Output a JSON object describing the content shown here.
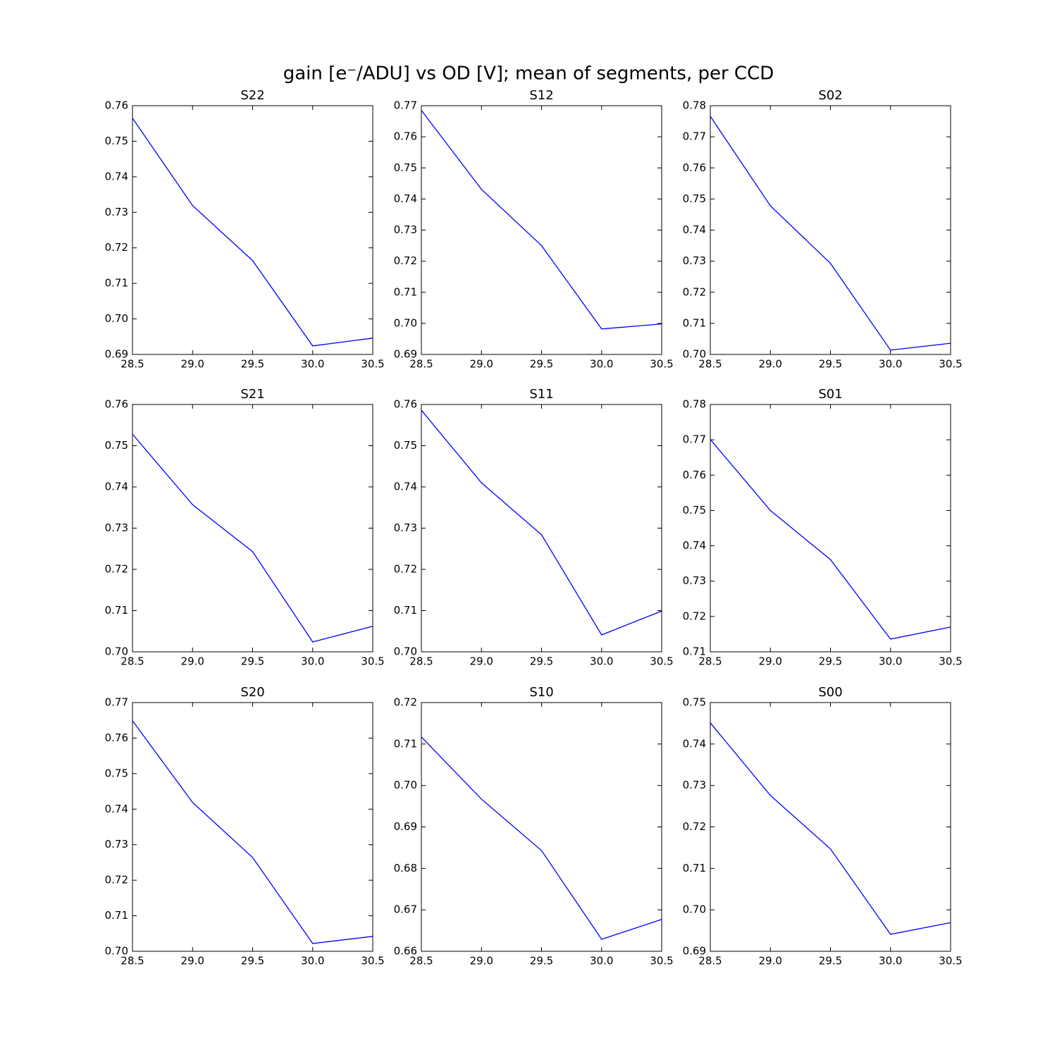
{
  "title": "gain [e⁻/ADU] vs OD [V]; mean of segments, per CCD",
  "chart_data": [
    {
      "type": "line",
      "title": "S22",
      "x": [
        28.5,
        29,
        29.5,
        30,
        30.5
      ],
      "values": [
        0.7565,
        0.7319,
        0.7164,
        0.6924,
        0.6946
      ],
      "color": "#0000ff",
      "xlim": [
        28.5,
        30.5
      ],
      "xticks": [
        28.5,
        {
          "value": 29,
          "label": "29.0"
        },
        29.5,
        {
          "value": 30,
          "label": "30.0"
        },
        30.5
      ],
      "ylim": [
        0.69,
        0.76
      ],
      "yticks": [
        0.69,
        {
          "value": 0.7,
          "label": "0.70"
        },
        0.71,
        0.72,
        0.73,
        0.74,
        0.75,
        0.76
      ]
    },
    {
      "type": "line",
      "title": "S12",
      "x": [
        28.5,
        29,
        29.5,
        30,
        30.5
      ],
      "values": [
        0.7685,
        0.7431,
        0.725,
        0.6982,
        0.6998
      ],
      "color": "#0000ff",
      "xlim": [
        28.5,
        30.5
      ],
      "xticks": [
        28.5,
        {
          "value": 29,
          "label": "29.0"
        },
        29.5,
        {
          "value": 30,
          "label": "30.0"
        },
        30.5
      ],
      "ylim": [
        0.69,
        0.77
      ],
      "yticks": [
        0.69,
        {
          "value": 0.7,
          "label": "0.70"
        },
        0.71,
        0.72,
        0.73,
        0.74,
        0.75,
        0.76,
        0.77
      ]
    },
    {
      "type": "line",
      "title": "S02",
      "x": [
        28.5,
        29,
        29.5,
        30,
        30.5
      ],
      "values": [
        0.7766,
        0.7478,
        0.7293,
        0.7014,
        0.7036
      ],
      "color": "#0000ff",
      "xlim": [
        28.5,
        30.5
      ],
      "xticks": [
        28.5,
        {
          "value": 29,
          "label": "29.0"
        },
        29.5,
        {
          "value": 30,
          "label": "30.0"
        },
        30.5
      ],
      "ylim": [
        0.7,
        0.78
      ],
      "yticks": [
        {
          "value": 0.7,
          "label": "0.70"
        },
        0.71,
        0.72,
        0.73,
        0.74,
        0.75,
        0.76,
        0.77,
        0.78
      ]
    },
    {
      "type": "line",
      "title": "S21",
      "x": [
        28.5,
        29,
        29.5,
        30,
        30.5
      ],
      "values": [
        0.7528,
        0.7357,
        0.7243,
        0.7024,
        0.7062
      ],
      "color": "#0000ff",
      "xlim": [
        28.5,
        30.5
      ],
      "xticks": [
        28.5,
        {
          "value": 29,
          "label": "29.0"
        },
        29.5,
        {
          "value": 30,
          "label": "30.0"
        },
        30.5
      ],
      "ylim": [
        0.7,
        0.76
      ],
      "yticks": [
        {
          "value": 0.7,
          "label": "0.70"
        },
        0.71,
        0.72,
        0.73,
        0.74,
        0.75,
        0.76
      ]
    },
    {
      "type": "line",
      "title": "S11",
      "x": [
        28.5,
        29,
        29.5,
        30,
        30.5
      ],
      "values": [
        0.7586,
        0.741,
        0.7284,
        0.7041,
        0.7099
      ],
      "color": "#0000ff",
      "xlim": [
        28.5,
        30.5
      ],
      "xticks": [
        28.5,
        {
          "value": 29,
          "label": "29.0"
        },
        29.5,
        {
          "value": 30,
          "label": "30.0"
        },
        30.5
      ],
      "ylim": [
        0.7,
        0.76
      ],
      "yticks": [
        {
          "value": 0.7,
          "label": "0.70"
        },
        0.71,
        0.72,
        0.73,
        0.74,
        0.75,
        0.76
      ]
    },
    {
      "type": "line",
      "title": "S01",
      "x": [
        28.5,
        29,
        29.5,
        30,
        30.5
      ],
      "values": [
        0.7701,
        0.75,
        0.7361,
        0.7136,
        0.717
      ],
      "color": "#0000ff",
      "xlim": [
        28.5,
        30.5
      ],
      "xticks": [
        28.5,
        {
          "value": 29,
          "label": "29.0"
        },
        29.5,
        {
          "value": 30,
          "label": "30.0"
        },
        30.5
      ],
      "ylim": [
        0.71,
        0.78
      ],
      "yticks": [
        0.71,
        0.72,
        0.73,
        0.74,
        0.75,
        0.76,
        0.77,
        0.78
      ]
    },
    {
      "type": "line",
      "title": "S20",
      "x": [
        28.5,
        29,
        29.5,
        30,
        30.5
      ],
      "values": [
        0.7649,
        0.7419,
        0.7264,
        0.7022,
        0.7042
      ],
      "color": "#0000ff",
      "xlim": [
        28.5,
        30.5
      ],
      "xticks": [
        28.5,
        {
          "value": 29,
          "label": "29.0"
        },
        29.5,
        {
          "value": 30,
          "label": "30.0"
        },
        30.5
      ],
      "ylim": [
        0.7,
        0.77
      ],
      "yticks": [
        {
          "value": 0.7,
          "label": "0.70"
        },
        0.71,
        0.72,
        0.73,
        0.74,
        0.75,
        0.76,
        0.77
      ]
    },
    {
      "type": "line",
      "title": "S10",
      "x": [
        28.5,
        29,
        29.5,
        30,
        30.5
      ],
      "values": [
        0.7117,
        0.6967,
        0.6843,
        0.6629,
        0.6677
      ],
      "color": "#0000ff",
      "xlim": [
        28.5,
        30.5
      ],
      "xticks": [
        28.5,
        {
          "value": 29,
          "label": "29.0"
        },
        29.5,
        {
          "value": 30,
          "label": "30.0"
        },
        30.5
      ],
      "ylim": [
        0.66,
        0.72
      ],
      "yticks": [
        0.66,
        0.67,
        0.68,
        0.69,
        {
          "value": 0.7,
          "label": "0.70"
        },
        0.71,
        0.72
      ]
    },
    {
      "type": "line",
      "title": "S00",
      "x": [
        28.5,
        29,
        29.5,
        30,
        30.5
      ],
      "values": [
        0.7451,
        0.7276,
        0.7147,
        0.6941,
        0.6969
      ],
      "color": "#0000ff",
      "xlim": [
        28.5,
        30.5
      ],
      "xticks": [
        28.5,
        {
          "value": 29,
          "label": "29.0"
        },
        29.5,
        {
          "value": 30,
          "label": "30.0"
        },
        30.5
      ],
      "ylim": [
        0.69,
        0.75
      ],
      "yticks": [
        0.69,
        {
          "value": 0.7,
          "label": "0.70"
        },
        0.71,
        0.72,
        0.73,
        0.74,
        0.75
      ]
    }
  ]
}
